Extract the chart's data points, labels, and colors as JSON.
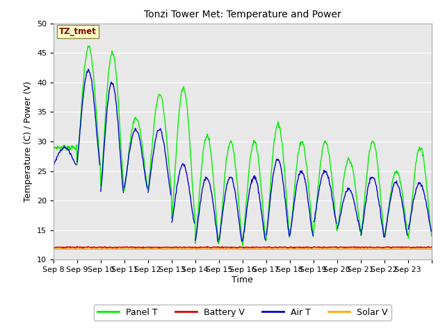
{
  "title": "Tonzi Tower Met: Temperature and Power",
  "xlabel": "Time",
  "ylabel": "Temperature (C) / Power (V)",
  "ylim": [
    10,
    50
  ],
  "yticks": [
    10,
    15,
    20,
    25,
    30,
    35,
    40,
    45,
    50
  ],
  "plot_bg": "#e8e8e8",
  "fig_bg": "#ffffff",
  "annotation_text": "TZ_tmet",
  "annotation_bg": "#ffffcc",
  "annotation_fg": "#880000",
  "annotation_border": "#888833",
  "colors": {
    "panel_t": "#00ee00",
    "battery_v": "#dd0000",
    "air_t": "#0000cc",
    "solar_v": "#ffaa00"
  },
  "legend_labels": [
    "Panel T",
    "Battery V",
    "Air T",
    "Solar V"
  ],
  "x_tick_labels": [
    "Sep 8",
    "Sep 9",
    "Sep 10",
    "Sep 11",
    "Sep 12",
    "Sep 13",
    "Sep 14",
    "Sep 15",
    "Sep 16",
    "Sep 17",
    "Sep 18",
    "Sep 19",
    "Sep 20",
    "Sep 21",
    "Sep 22",
    "Sep 23"
  ],
  "n_days": 16,
  "battery_v_level": 12.1,
  "solar_v_level": 11.8,
  "panel_peaks": [
    29,
    46,
    45,
    34,
    38,
    39,
    31,
    30,
    30,
    33,
    30,
    30,
    27,
    30,
    25,
    29
  ],
  "panel_troughs": [
    29,
    26,
    22,
    22,
    22,
    17,
    13,
    13,
    13,
    14,
    14,
    15,
    15,
    14,
    14,
    14
  ],
  "air_peaks": [
    29,
    42,
    40,
    32,
    32,
    26,
    24,
    24,
    24,
    27,
    25,
    25,
    22,
    24,
    23,
    23
  ],
  "air_troughs": [
    26,
    26,
    21,
    22,
    21,
    16,
    13,
    13,
    13,
    14,
    14,
    16,
    15,
    14,
    14,
    15
  ]
}
